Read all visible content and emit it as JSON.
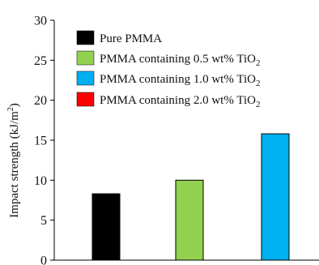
{
  "chart_data": {
    "type": "bar",
    "title": "",
    "xlabel": "",
    "ylabel": {
      "text": "Impact strength (kJ/m",
      "superscript": "2",
      "suffix": ")"
    },
    "ylim": [
      0,
      30
    ],
    "yticks": [
      0,
      5,
      10,
      15,
      20,
      25,
      30
    ],
    "grid": false,
    "legend_position": "top-left",
    "series": [
      {
        "name": "Pure PMMA",
        "label_text": "Pure PMMA",
        "label_sub": "",
        "value": 8.3,
        "color": "#000000",
        "shown": true
      },
      {
        "name": "PMMA containing 0.5 wt% TiO2",
        "label_text": "PMMA containing 0.5 wt% TiO",
        "label_sub": "2",
        "value": 10.0,
        "color": "#92d050",
        "shown": true
      },
      {
        "name": "PMMA containing 1.0 wt% TiO2",
        "label_text": "PMMA containing 1.0 wt% TiO",
        "label_sub": "2",
        "value": 15.8,
        "color": "#00b0f0",
        "shown": true
      },
      {
        "name": "PMMA containing 2.0 wt% TiO2",
        "label_text": "PMMA containing 2.0 wt% TiO",
        "label_sub": "2",
        "value": null,
        "color": "#ff0000",
        "shown": false
      }
    ]
  }
}
